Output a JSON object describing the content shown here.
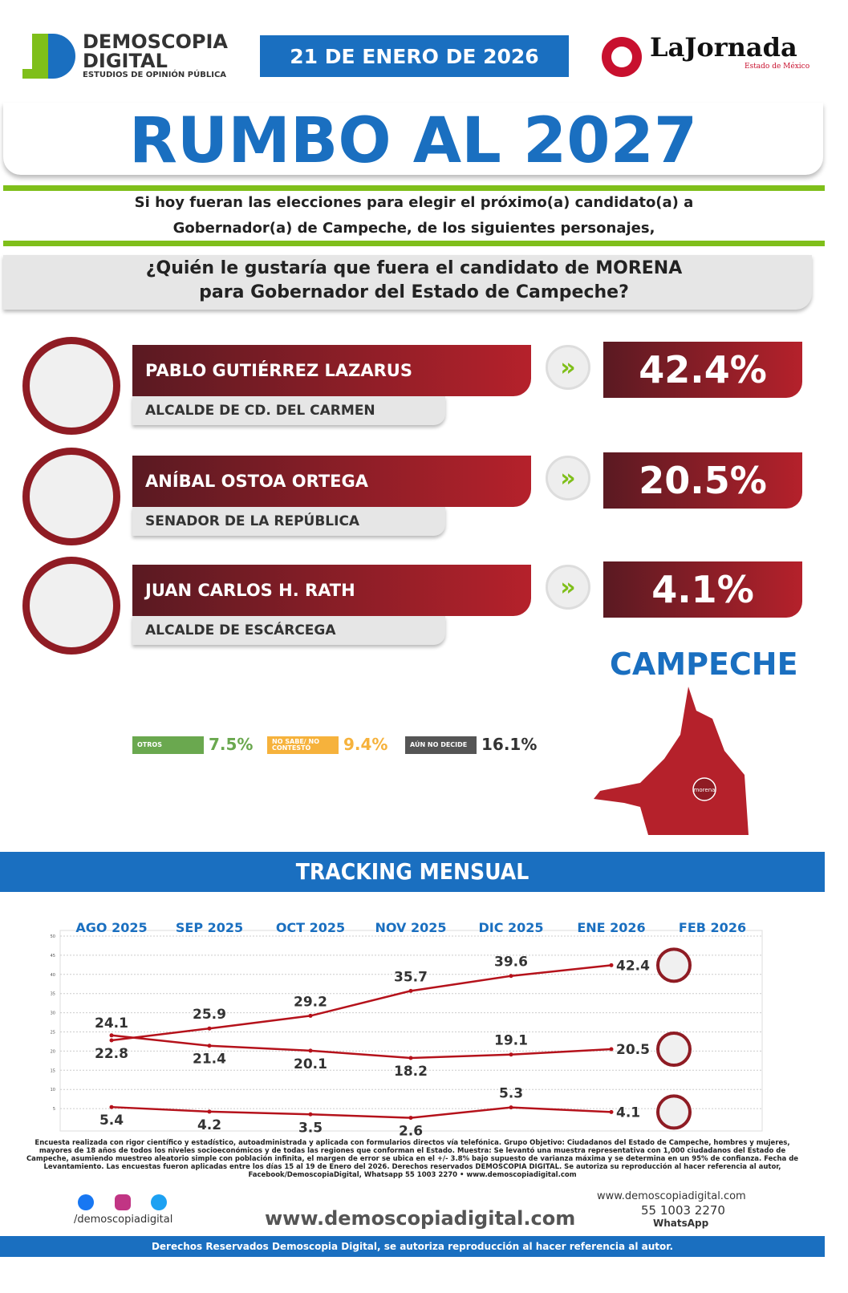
{
  "header": {
    "brand": "DEMOSCOPIA",
    "brand2": "DIGITAL",
    "brand_sub": "ESTUDIOS DE OPINIÓN PÚBLICA",
    "date": "21 DE ENERO DE 2026",
    "partner": "LaJornada",
    "partner_sub": "Estado de México"
  },
  "title": "RUMBO AL 2027",
  "intro": [
    "Si hoy fueran las elecciones para elegir el próximo(a) candidato(a) a",
    "Gobernador(a) de Campeche, de los siguientes personajes,"
  ],
  "question": [
    "¿Quién le gustaría que fuera el candidato de MORENA",
    "para Gobernador del Estado de Campeche?"
  ],
  "candidates": [
    {
      "name": "PABLO GUTIÉRREZ LAZARUS",
      "role": "ALCALDE DE CD. DEL CARMEN",
      "value": 42.4,
      "value_label": "42.4%"
    },
    {
      "name": "ANÍBAL OSTOA ORTEGA",
      "role": "SENADOR DE LA REPÚBLICA",
      "value": 20.5,
      "value_label": "20.5%"
    },
    {
      "name": "JUAN CARLOS H. RATH",
      "role": "ALCALDE DE ESCÁRCEGA",
      "value": 4.1,
      "value_label": "4.1%"
    }
  ],
  "others": [
    {
      "label": "OTROS",
      "value": 7.5,
      "value_label": "7.5%",
      "color": "#6aa84f"
    },
    {
      "label": "NO SABE/ NO CONTESTÓ",
      "value": 9.4,
      "value_label": "9.4%",
      "color": "#f6b23c"
    },
    {
      "label": "AÚN NO DECIDE",
      "value": 16.1,
      "value_label": "16.1%",
      "color": "#555555"
    }
  ],
  "state": "CAMPECHE",
  "map_label": "morena",
  "chart_data": {
    "type": "line",
    "title": "TRACKING MENSUAL",
    "categories": [
      "AGO 2025",
      "SEP 2025",
      "OCT 2025",
      "NOV 2025",
      "DIC 2025",
      "ENE 2026",
      "FEB 2026"
    ],
    "ylim": [
      0,
      50
    ],
    "yticks": [
      5,
      10,
      15,
      20,
      25,
      30,
      35,
      40,
      45,
      50
    ],
    "grid": true,
    "series": [
      {
        "name": "PABLO GUTIÉRREZ LAZARUS",
        "color": "#b5121b",
        "values": [
          22.8,
          25.9,
          29.2,
          35.7,
          39.6,
          42.4,
          null
        ]
      },
      {
        "name": "ANÍBAL OSTOA ORTEGA",
        "color": "#b5121b",
        "values": [
          24.1,
          21.4,
          20.1,
          18.2,
          19.1,
          20.5,
          null
        ]
      },
      {
        "name": "JUAN CARLOS H. RATH",
        "color": "#b5121b",
        "values": [
          5.4,
          4.2,
          3.5,
          2.6,
          5.3,
          4.1,
          null
        ]
      }
    ]
  },
  "footer": {
    "method": "Encuesta realizada con rigor científico y estadístico, autoadministrada y aplicada con formularios directos vía telefónica. Grupo Objetivo: Ciudadanos del Estado de Campeche, hombres y mujeres, mayores de 18 años de todos los niveles socioeconómicos y de todas las regiones que conforman el Estado. Muestra: Se levantó una muestra representativa con 1,000 ciudadanos del Estado de Campeche, asumiendo muestreo aleatorio simple con población infinita, el margen de error se ubica en el +/- 3.8% bajo supuesto de varianza máxima y se determina en un 95% de confianza. Fecha de Levantamiento. Las encuestas fueron aplicadas entre los días 15 al 19 de Enero del 2026. Derechos reservados DEMOSCOPIA DIGITAL. Se autoriza su reproducción al hacer referencia al autor, Facebook/DemoscopiaDigital, Whatsapp 55 1003 2270 • www.demoscopiadigital.com",
    "social": "/demoscopiadigital",
    "web": "www.demoscopiadigital.com",
    "phone": "55 1003 2270",
    "whatsapp": "WhatsApp",
    "rights": "Derechos Reservados Demoscopia Digital, se autoriza reproducción al hacer referencia al autor."
  }
}
